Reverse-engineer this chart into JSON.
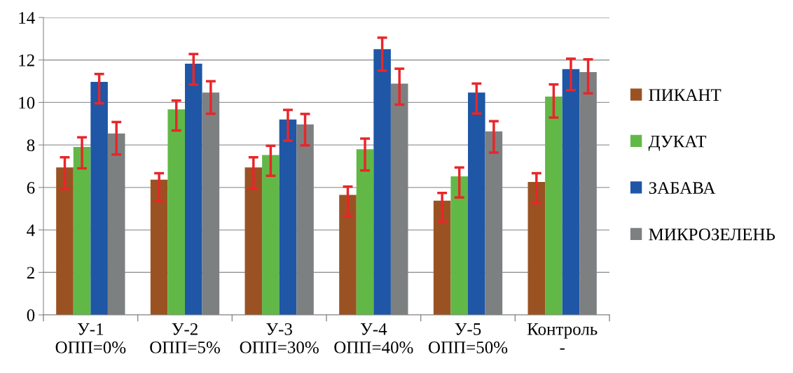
{
  "chart_data": {
    "type": "bar",
    "categories": [
      "У-1\nОПП=0%",
      "У-2\nОПП=5%",
      "У-3\nОПП=30%",
      "У-4\nОПП=40%",
      "У-5\nОПП=50%",
      "Контроль\n-"
    ],
    "series": [
      {
        "name": "ПИКАНТ",
        "color": "#9a5223",
        "values": [
          6.94,
          6.37,
          6.94,
          5.65,
          5.38,
          6.26
        ],
        "errors": [
          [
            5.93,
            7.42
          ],
          [
            5.37,
            6.67
          ],
          [
            5.93,
            7.42
          ],
          [
            4.66,
            6.04
          ],
          [
            4.4,
            5.74
          ],
          [
            5.26,
            6.67
          ]
        ]
      },
      {
        "name": "ДУКАТ",
        "color": "#62b847",
        "values": [
          7.91,
          9.68,
          7.53,
          7.8,
          6.52,
          10.28
        ],
        "errors": [
          [
            6.9,
            8.36
          ],
          [
            8.68,
            10.09
          ],
          [
            6.55,
            7.96
          ],
          [
            6.8,
            8.3
          ],
          [
            5.53,
            6.94
          ],
          [
            9.29,
            10.85
          ]
        ]
      },
      {
        "name": "ЗАБАВА",
        "color": "#1f56a6",
        "values": [
          10.97,
          11.83,
          9.2,
          12.51,
          10.47,
          11.57
        ],
        "errors": [
          [
            9.96,
            11.34
          ],
          [
            10.84,
            12.28
          ],
          [
            8.2,
            9.65
          ],
          [
            11.5,
            13.05
          ],
          [
            9.48,
            10.89
          ],
          [
            10.58,
            12.06
          ]
        ]
      },
      {
        "name": "МИКРОЗЕЛЕНЬ",
        "color": "#7d8081",
        "values": [
          8.54,
          10.47,
          8.97,
          10.89,
          8.64,
          11.43
        ],
        "errors": [
          [
            7.55,
            9.08
          ],
          [
            9.47,
            11.0
          ],
          [
            7.98,
            9.46
          ],
          [
            9.9,
            11.59
          ],
          [
            7.64,
            9.12
          ],
          [
            10.43,
            12.03
          ]
        ]
      }
    ],
    "ylim": [
      0,
      14
    ],
    "yticks": [
      0,
      2,
      4,
      6,
      8,
      10,
      12,
      14
    ],
    "grid": "y",
    "legend": "right"
  }
}
